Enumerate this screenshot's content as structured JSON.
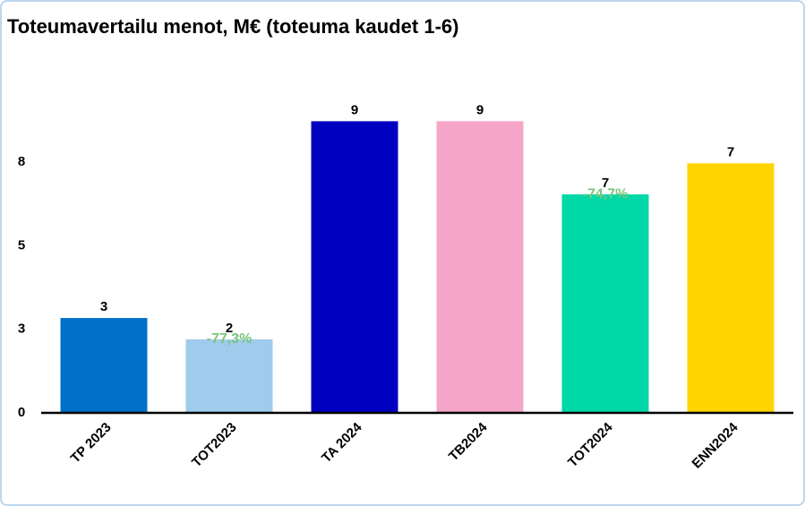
{
  "chart_data": {
    "type": "bar",
    "title": "Toteumavertailu menot, M€ (toteuma kaudet 1-6)",
    "categories": [
      "TP 2023",
      "TOT2023",
      "TA 2024",
      "TB2024",
      "TOT2024",
      "ENN2024"
    ],
    "values": [
      2.84,
      2.2,
      8.73,
      8.73,
      6.54,
      7.47
    ],
    "value_labels": [
      "3",
      "2",
      "9",
      "9",
      "7",
      "7"
    ],
    "change_labels": [
      null,
      "-77,3%",
      null,
      null,
      "-74,7%",
      null
    ],
    "colors": [
      "#0070c8",
      "#9fcbec",
      "#0000c0",
      "#f4a6c8",
      "#00d8a8",
      "#ffd400"
    ],
    "ylim": [
      0,
      10
    ],
    "yticks": [
      0,
      {
        "value": 2.5,
        "label": "3"
      },
      5,
      {
        "value": 7.5,
        "label": "8"
      }
    ],
    "grid": false
  }
}
